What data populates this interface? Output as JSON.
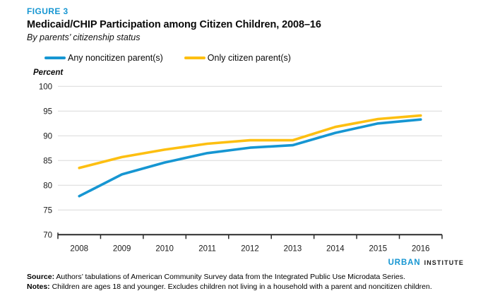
{
  "figure_label": "FIGURE 3",
  "title": "Medicaid/CHIP Participation among Citizen Children, 2008–16",
  "subtitle": "By parents’ citizenship status",
  "unit_label": "Percent",
  "colors": {
    "accent_blue": "#1696d2",
    "accent_yellow": "#fdbf11",
    "grid": "#d9d9d9",
    "axis": "#2b2b2b",
    "tick_text": "#1a1a1a"
  },
  "legend": [
    {
      "key": "any-noncitizen-parents",
      "label": "Any noncitizen parent(s)",
      "color": "#1696d2"
    },
    {
      "key": "only-citizen-parents",
      "label": "Only citizen parent(s)",
      "color": "#fdbf11"
    }
  ],
  "chart_data": {
    "type": "line",
    "title": "Medicaid/CHIP Participation among Citizen Children, 2008–16",
    "subtitle": "By parents’ citizenship status",
    "ylabel": "Percent",
    "x": [
      2008,
      2009,
      2010,
      2011,
      2012,
      2013,
      2014,
      2015,
      2016
    ],
    "series": [
      {
        "name": "Any noncitizen parent(s)",
        "key": "any-noncitizen-parents",
        "color": "#1696d2",
        "values": [
          77.8,
          82.2,
          84.6,
          86.5,
          87.6,
          88.1,
          90.6,
          92.5,
          93.3
        ]
      },
      {
        "name": "Only citizen parent(s)",
        "key": "only-citizen-parents",
        "color": "#fdbf11",
        "values": [
          83.5,
          85.7,
          87.2,
          88.4,
          89.1,
          89.1,
          91.8,
          93.4,
          94.1
        ]
      }
    ],
    "ylim": [
      70,
      100
    ],
    "yticks": [
      70,
      75,
      80,
      85,
      90,
      95,
      100
    ],
    "grid": true,
    "legend_position": "top"
  },
  "logo": {
    "part1": "URBAN",
    "part2": "INSTITUTE"
  },
  "footer": {
    "source_label": "Source:",
    "source_text": " Authors’ tabulations of American Community Survey data from the Integrated Public Use Microdata Series.",
    "notes_label": "Notes:",
    "notes_text": " Children are ages 18 and younger. Excludes children not living in a household with a parent and noncitizen children."
  }
}
